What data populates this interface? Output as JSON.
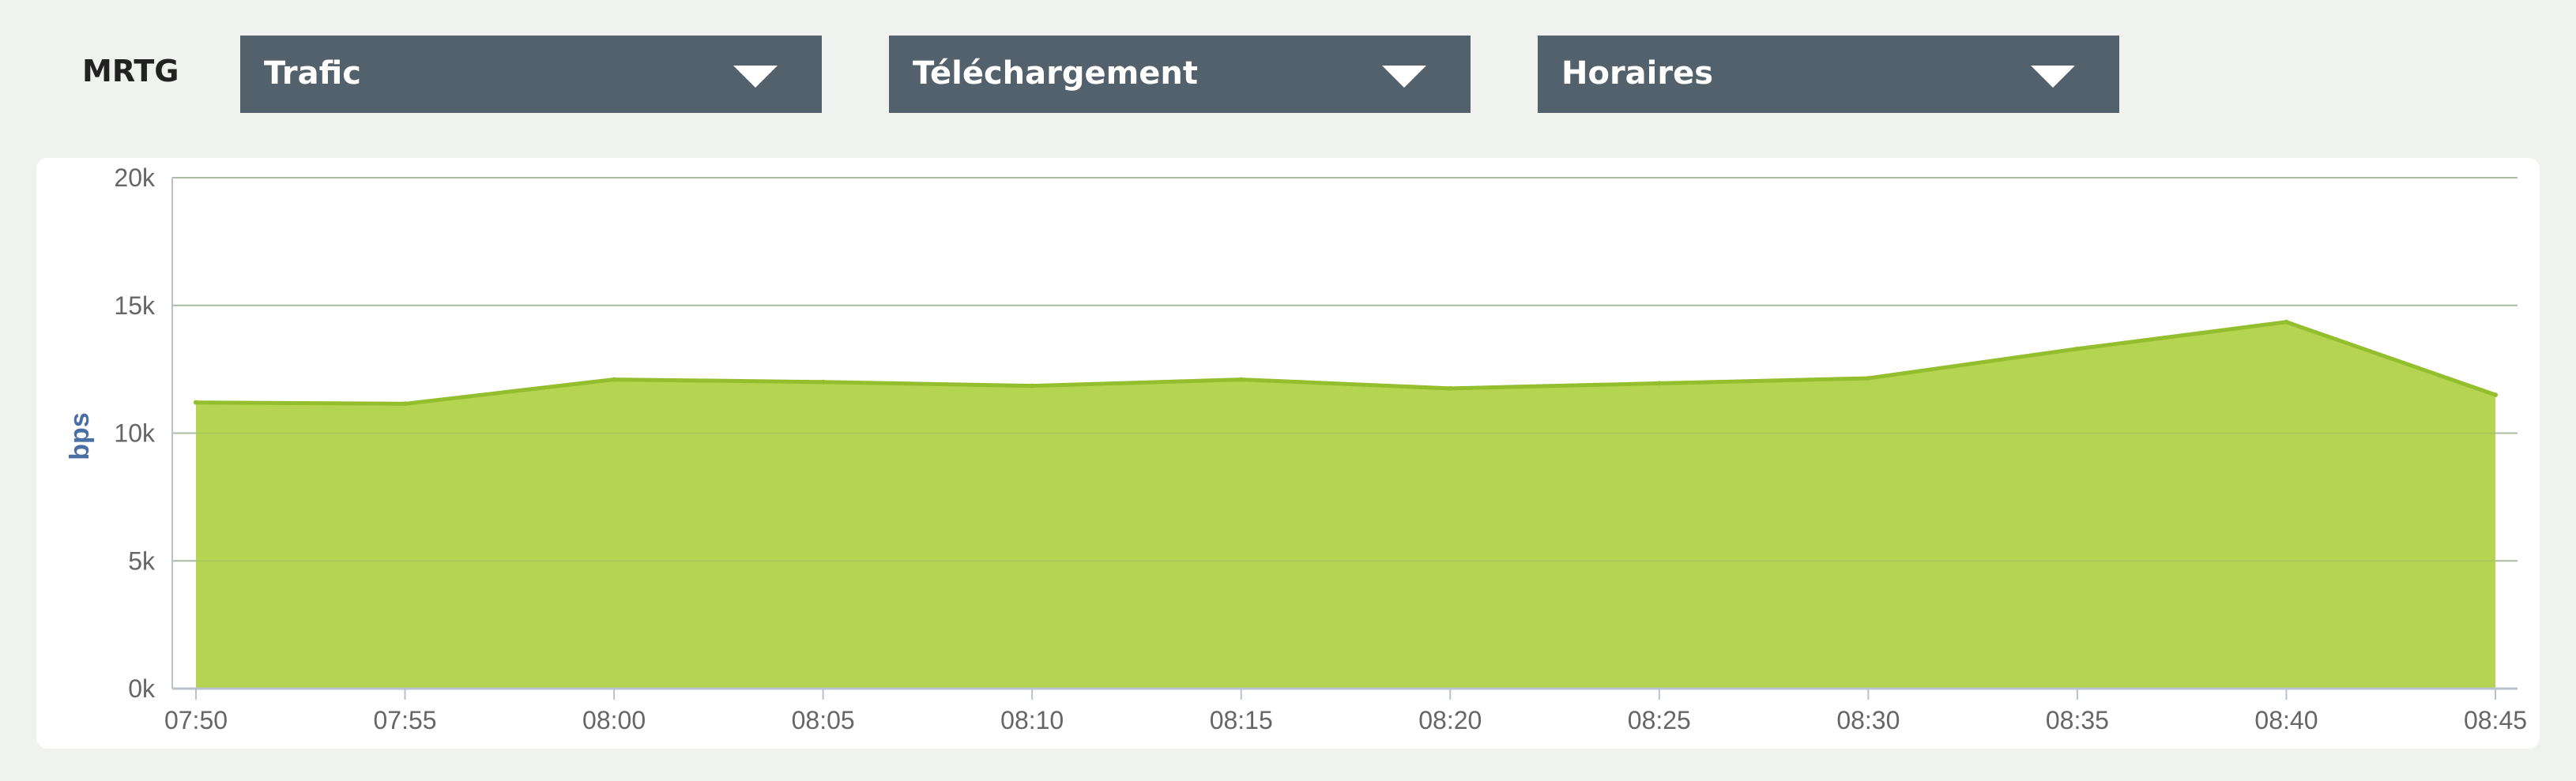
{
  "toolbar": {
    "title": "MRTG",
    "dropdowns": [
      {
        "label": "Trafic"
      },
      {
        "label": "Téléchargement"
      },
      {
        "label": "Horaires"
      }
    ]
  },
  "colors": {
    "area_fill": "#b5d452",
    "area_line": "#93be2d",
    "dropdown_bg": "#52616b"
  },
  "chart_data": {
    "type": "area",
    "xlabel": "",
    "ylabel": "bps",
    "ylim": [
      0,
      20000
    ],
    "yticks": [
      "0k",
      "5k",
      "10k",
      "15k",
      "20k"
    ],
    "x": [
      "07:50",
      "07:55",
      "08:00",
      "08:05",
      "08:10",
      "08:15",
      "08:20",
      "08:25",
      "08:30",
      "08:35",
      "08:40",
      "08:45"
    ],
    "series": [
      {
        "values": [
          11200,
          11150,
          12100,
          12000,
          11850,
          12100,
          11750,
          11950,
          12150,
          13300,
          14350,
          11500
        ]
      }
    ],
    "grid": true,
    "legend": "none"
  }
}
